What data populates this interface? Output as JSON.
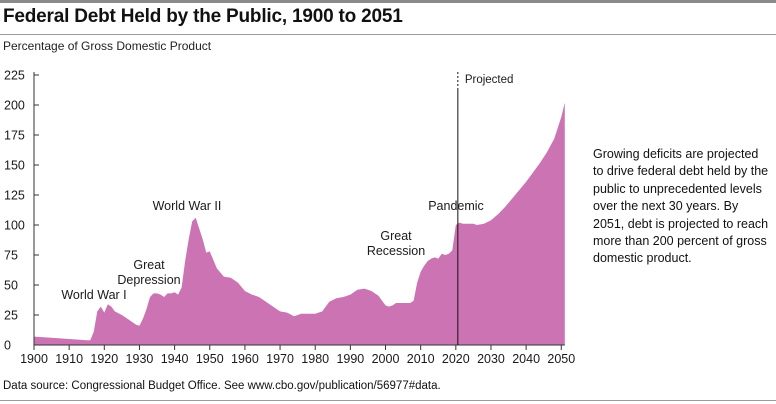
{
  "title": "Federal Debt Held by the Public, 1900 to 2051",
  "subtitle": "Percentage of Gross Domestic Product",
  "commentary": "Growing deficits are projected to drive federal debt held by the public to unprecedented levels over the next 30 years. By 2051, debt is projected to reach more than 200 percent of gross domestic product.",
  "source": "Data source: Congressional Budget Office. See www.cbo.gov/publication/56977#data.",
  "colors": {
    "area": "#cc74b3",
    "axis": "#333333",
    "projection_line": "#111111"
  },
  "chart_data": {
    "type": "area",
    "title": "Federal Debt Held by the Public, 1900 to 2051",
    "subtitle": "Percentage of Gross Domestic Product",
    "xlabel": "",
    "ylabel": "",
    "xlim": [
      1900,
      2051
    ],
    "ylim": [
      0,
      225
    ],
    "x_ticks": [
      1900,
      1910,
      1920,
      1930,
      1940,
      1950,
      1960,
      1970,
      1980,
      1990,
      2000,
      2010,
      2020,
      2030,
      2040,
      2050
    ],
    "y_ticks": [
      0,
      25,
      50,
      75,
      100,
      125,
      150,
      175,
      200,
      225
    ],
    "grid": false,
    "projection_start": 2021,
    "projection_label": "Projected",
    "annotations": [
      {
        "name": "world-war-1",
        "lines": [
          "World War I"
        ],
        "year": 1918
      },
      {
        "name": "great-depression",
        "lines": [
          "Great",
          "Depression"
        ],
        "year": 1933
      },
      {
        "name": "world-war-2",
        "lines": [
          "World War II"
        ],
        "year": 1946
      },
      {
        "name": "great-recession",
        "lines": [
          "Great",
          "Recession"
        ],
        "year": 2009
      },
      {
        "name": "pandemic",
        "lines": [
          "Pandemic"
        ],
        "year": 2020
      }
    ],
    "x": [
      1900,
      1905,
      1910,
      1915,
      1916,
      1917,
      1918,
      1919,
      1920,
      1921,
      1922,
      1923,
      1925,
      1927,
      1929,
      1930,
      1931,
      1932,
      1933,
      1934,
      1935,
      1936,
      1937,
      1938,
      1939,
      1940,
      1941,
      1942,
      1943,
      1944,
      1945,
      1946,
      1947,
      1948,
      1949,
      1950,
      1952,
      1954,
      1956,
      1958,
      1960,
      1962,
      1964,
      1966,
      1968,
      1970,
      1972,
      1974,
      1976,
      1978,
      1980,
      1982,
      1984,
      1986,
      1988,
      1990,
      1992,
      1994,
      1996,
      1998,
      2000,
      2001,
      2002,
      2003,
      2005,
      2007,
      2008,
      2009,
      2010,
      2011,
      2012,
      2013,
      2014,
      2015,
      2016,
      2017,
      2018,
      2019,
      2020,
      2021,
      2022,
      2023,
      2024,
      2025,
      2026,
      2028,
      2030,
      2032,
      2034,
      2036,
      2038,
      2040,
      2042,
      2044,
      2046,
      2048,
      2050,
      2051
    ],
    "y": [
      7,
      6,
      5,
      4,
      4,
      11,
      28,
      32,
      27,
      34,
      32,
      28,
      25,
      21,
      17,
      16,
      22,
      30,
      40,
      43,
      43,
      42,
      40,
      43,
      43,
      44,
      42,
      48,
      70,
      88,
      103,
      106,
      97,
      88,
      77,
      78,
      64,
      57,
      56,
      52,
      45,
      42,
      40,
      36,
      32,
      28,
      27,
      24,
      26,
      26,
      26,
      28,
      36,
      39,
      40,
      42,
      46,
      47,
      45,
      41,
      33,
      32,
      33,
      35,
      35,
      35,
      37,
      52,
      61,
      66,
      70,
      72,
      73,
      72,
      76,
      75,
      76,
      79,
      100,
      102,
      101,
      101,
      101,
      101,
      100,
      101,
      104,
      109,
      115,
      122,
      129,
      136,
      144,
      152,
      161,
      172,
      190,
      202
    ]
  }
}
